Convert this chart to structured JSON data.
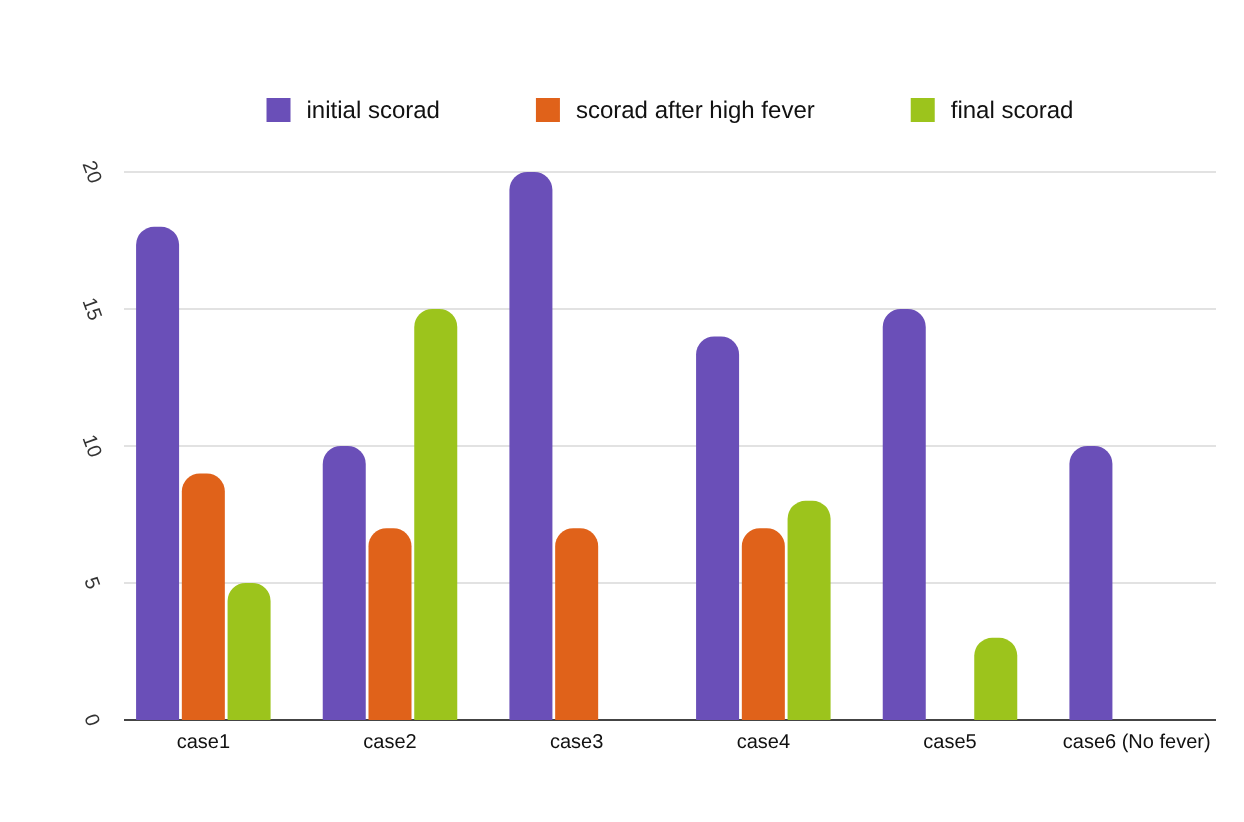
{
  "chart_data": {
    "type": "bar",
    "categories": [
      "case1",
      "case2",
      "case3",
      "case4",
      "case5",
      "case6 (No fever)"
    ],
    "series": [
      {
        "name": "initial scorad",
        "color": "#6a4fb8",
        "values": [
          18,
          10,
          20,
          14,
          15,
          10
        ]
      },
      {
        "name": "scorad after high fever",
        "color": "#e0621a",
        "values": [
          9,
          7,
          7,
          7,
          null,
          null
        ]
      },
      {
        "name": "final scorad",
        "color": "#9cc41c",
        "values": [
          5,
          15,
          null,
          8,
          3,
          null
        ]
      }
    ],
    "ylim": [
      0,
      20
    ],
    "yticks": [
      0,
      5,
      10,
      15,
      20
    ],
    "grid": "y",
    "legend": "top"
  }
}
